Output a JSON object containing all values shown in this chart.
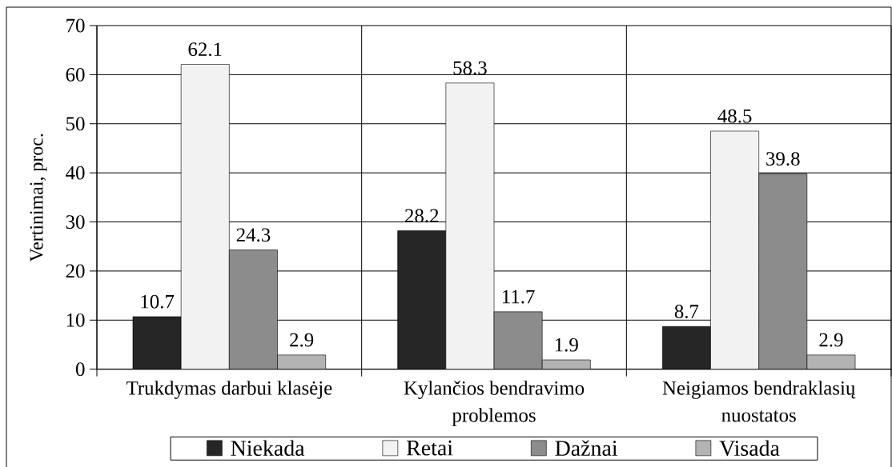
{
  "chart_data": {
    "type": "bar",
    "ylabel": "Vertinimai, proc.",
    "categories": [
      "Trukdymas darbui klasėje",
      "Kylančios bendravimo problemos",
      "Neigiamos bendraklasių nuostatos"
    ],
    "series": [
      {
        "name": "Niekada",
        "color": "#262626",
        "values": [
          10.7,
          28.2,
          8.7
        ]
      },
      {
        "name": "Retai",
        "color": "#f2f2f2",
        "values": [
          62.1,
          58.3,
          48.5
        ]
      },
      {
        "name": "Dažnai",
        "color": "#8c8c8c",
        "values": [
          24.3,
          11.7,
          39.8
        ]
      },
      {
        "name": "Visada",
        "color": "#b3b3b3",
        "values": [
          2.9,
          1.9,
          2.9
        ]
      }
    ],
    "ylim": [
      0,
      70
    ],
    "yticks": [
      0,
      10,
      20,
      30,
      40,
      50,
      60,
      70
    ],
    "grid": true,
    "legend": "bottom",
    "data_labels": true
  }
}
